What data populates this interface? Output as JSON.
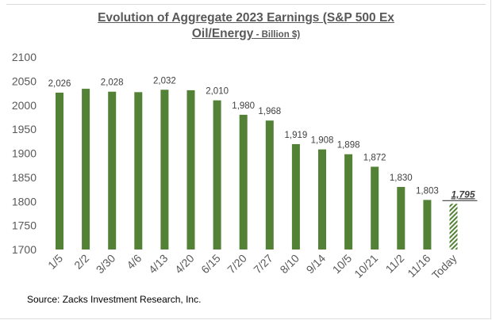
{
  "chart_data": {
    "type": "bar",
    "title_main": "Evolution of Aggregate 2023 Earnings (S&P 500 Ex Oil/Energy",
    "title_line1": "Evolution of Aggregate 2023 Earnings (S&P 500 Ex",
    "title_line2": "Oil/Energy",
    "title_unit": " - Billion $)",
    "categories": [
      "1/5",
      "2/2",
      "3/30",
      "4/6",
      "4/13",
      "4/20",
      "6/15",
      "7/20",
      "7/27",
      "8/10",
      "9/14",
      "10/5",
      "10/21",
      "11/2",
      "11/16",
      "Today"
    ],
    "values": [
      2026,
      2034,
      2028,
      2027,
      2032,
      2031,
      2010,
      1980,
      1968,
      1919,
      1908,
      1898,
      1872,
      1830,
      1803,
      1795
    ],
    "data_labels": [
      "2,026",
      "",
      "2,028",
      "",
      "2,032",
      "",
      "2,010",
      "1,980",
      "1,968",
      "1,919",
      "1,908",
      "1,898",
      "1,872",
      "1,830",
      "1,803",
      "1,795"
    ],
    "highlight": {
      "category": "Today",
      "style": "hatched",
      "label_style": "bold-italic-underlined"
    },
    "xlabel": "",
    "ylabel": "",
    "ylim": [
      1700,
      2100
    ],
    "yticks": [
      "1700",
      "1750",
      "1800",
      "1850",
      "1900",
      "1950",
      "2000",
      "2050",
      "2100"
    ],
    "grid": false,
    "colors": {
      "bar": "#538135",
      "text": "#595959"
    }
  },
  "source": "Source: Zacks Investment Research, Inc."
}
